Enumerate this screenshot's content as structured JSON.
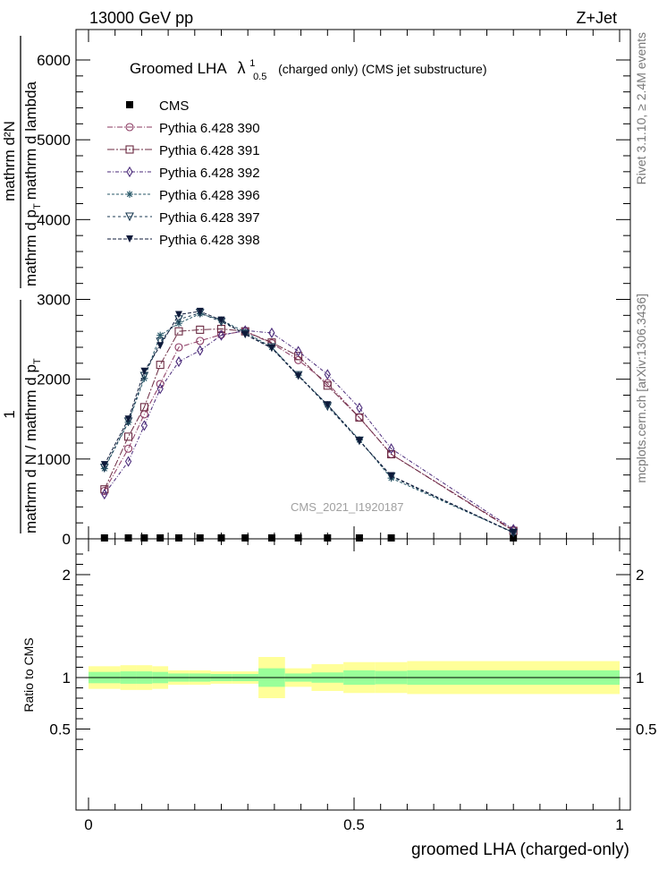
{
  "header": {
    "left": "13000 GeV pp",
    "right": "Z+Jet",
    "side_right_top": "Rivet 3.1.10, ≥ 2.4M events",
    "side_right_bottom": "mcplots.cern.ch [arXiv:1306.3436]"
  },
  "top_panel": {
    "title_prefix": "Groomed LHA",
    "title_symbol": "λ",
    "title_sup": "1",
    "title_sub": "0.5",
    "title_suffix": "(charged only) (CMS jet substructure)",
    "watermark": "CMS_2021_I1920187",
    "ylabel_top_numer": "mathrm d²N",
    "ylabel_top_denom": "mathrm d p",
    "ylabel_top_denom_sub": "T",
    "ylabel_top_denom_tail": "mathrm d lambda",
    "ylabel_prefactor": "1",
    "ylabel_bottom": "mathrm d N / mathrm d p",
    "ylabel_bottom_sub": "T"
  },
  "bottom_panel": {
    "ylabel": "Ratio to CMS",
    "xlabel": "groomed LHA (charged-only)"
  },
  "legend": [
    {
      "name": "CMS",
      "color": "#000000",
      "marker": "filled-square"
    },
    {
      "name": "Pythia 6.428 390",
      "color": "#8b3a62",
      "marker": "open-circle"
    },
    {
      "name": "Pythia 6.428 391",
      "color": "#6b2a42",
      "marker": "open-square"
    },
    {
      "name": "Pythia 6.428 392",
      "color": "#4a2a7a",
      "marker": "open-diamond"
    },
    {
      "name": "Pythia 6.428 396",
      "color": "#2a5a6a",
      "marker": "star"
    },
    {
      "name": "Pythia 6.428 397",
      "color": "#1a3a52",
      "marker": "open-triangle-down"
    },
    {
      "name": "Pythia 6.428 398",
      "color": "#0e1a3a",
      "marker": "filled-triangle-down"
    }
  ],
  "chart_data": {
    "type": "line",
    "x": [
      0.03,
      0.075,
      0.105,
      0.135,
      0.17,
      0.21,
      0.25,
      0.295,
      0.345,
      0.395,
      0.45,
      0.51,
      0.57,
      0.8
    ],
    "xlim": [
      -0.025,
      1.025
    ],
    "ylim_main": [
      0,
      6000
    ],
    "yticks_main": [
      0,
      1000,
      2000,
      3000,
      4000,
      5000,
      6000
    ],
    "ylim_ratio": [
      0.25,
      2.35
    ],
    "yticks_ratio": [
      0.5,
      1,
      2
    ],
    "xticks": [
      0,
      0.5,
      1
    ],
    "series": [
      {
        "name": "CMS",
        "values": [
          5,
          5,
          5,
          5,
          5,
          5,
          5,
          5,
          5,
          5,
          5,
          5,
          5,
          5
        ]
      },
      {
        "name": "Pythia 6.428 390",
        "values": [
          600,
          1130,
          1560,
          1940,
          2400,
          2480,
          2560,
          2600,
          2450,
          2240,
          1950,
          1520,
          1060,
          110
        ]
      },
      {
        "name": "Pythia 6.428 391",
        "values": [
          620,
          1280,
          1650,
          2180,
          2600,
          2620,
          2630,
          2600,
          2460,
          2290,
          1920,
          1520,
          1060,
          100
        ]
      },
      {
        "name": "Pythia 6.428 392",
        "values": [
          560,
          970,
          1420,
          1880,
          2220,
          2360,
          2550,
          2610,
          2580,
          2350,
          2060,
          1640,
          1130,
          120
        ]
      },
      {
        "name": "Pythia 6.428 396",
        "values": [
          880,
          1460,
          2010,
          2550,
          2700,
          2820,
          2740,
          2590,
          2400,
          2050,
          1680,
          1240,
          760,
          80
        ]
      },
      {
        "name": "Pythia 6.428 397",
        "values": [
          890,
          1470,
          2040,
          2470,
          2750,
          2830,
          2720,
          2570,
          2400,
          2050,
          1660,
          1230,
          780,
          75
        ]
      },
      {
        "name": "Pythia 6.428 398",
        "values": [
          930,
          1500,
          2100,
          2420,
          2810,
          2850,
          2740,
          2560,
          2390,
          2040,
          1680,
          1230,
          790,
          80
        ]
      }
    ],
    "ratio_bands": {
      "edges": [
        0,
        0.06,
        0.09,
        0.12,
        0.15,
        0.19,
        0.23,
        0.27,
        0.32,
        0.37,
        0.42,
        0.48,
        0.54,
        0.6,
        1.0
      ],
      "inner_half_width": [
        0.055,
        0.06,
        0.06,
        0.055,
        0.04,
        0.04,
        0.035,
        0.035,
        0.09,
        0.04,
        0.05,
        0.07,
        0.065,
        0.07
      ],
      "outer_half_width": [
        0.11,
        0.12,
        0.12,
        0.11,
        0.07,
        0.07,
        0.06,
        0.06,
        0.2,
        0.09,
        0.13,
        0.15,
        0.15,
        0.16
      ],
      "inner_color": "#99ff99",
      "outer_color": "#ffff99"
    },
    "xlabel": "groomed LHA (charged-only)",
    "ylabel_ratio": "Ratio to CMS",
    "legend_position": "top-left",
    "grid": false
  }
}
